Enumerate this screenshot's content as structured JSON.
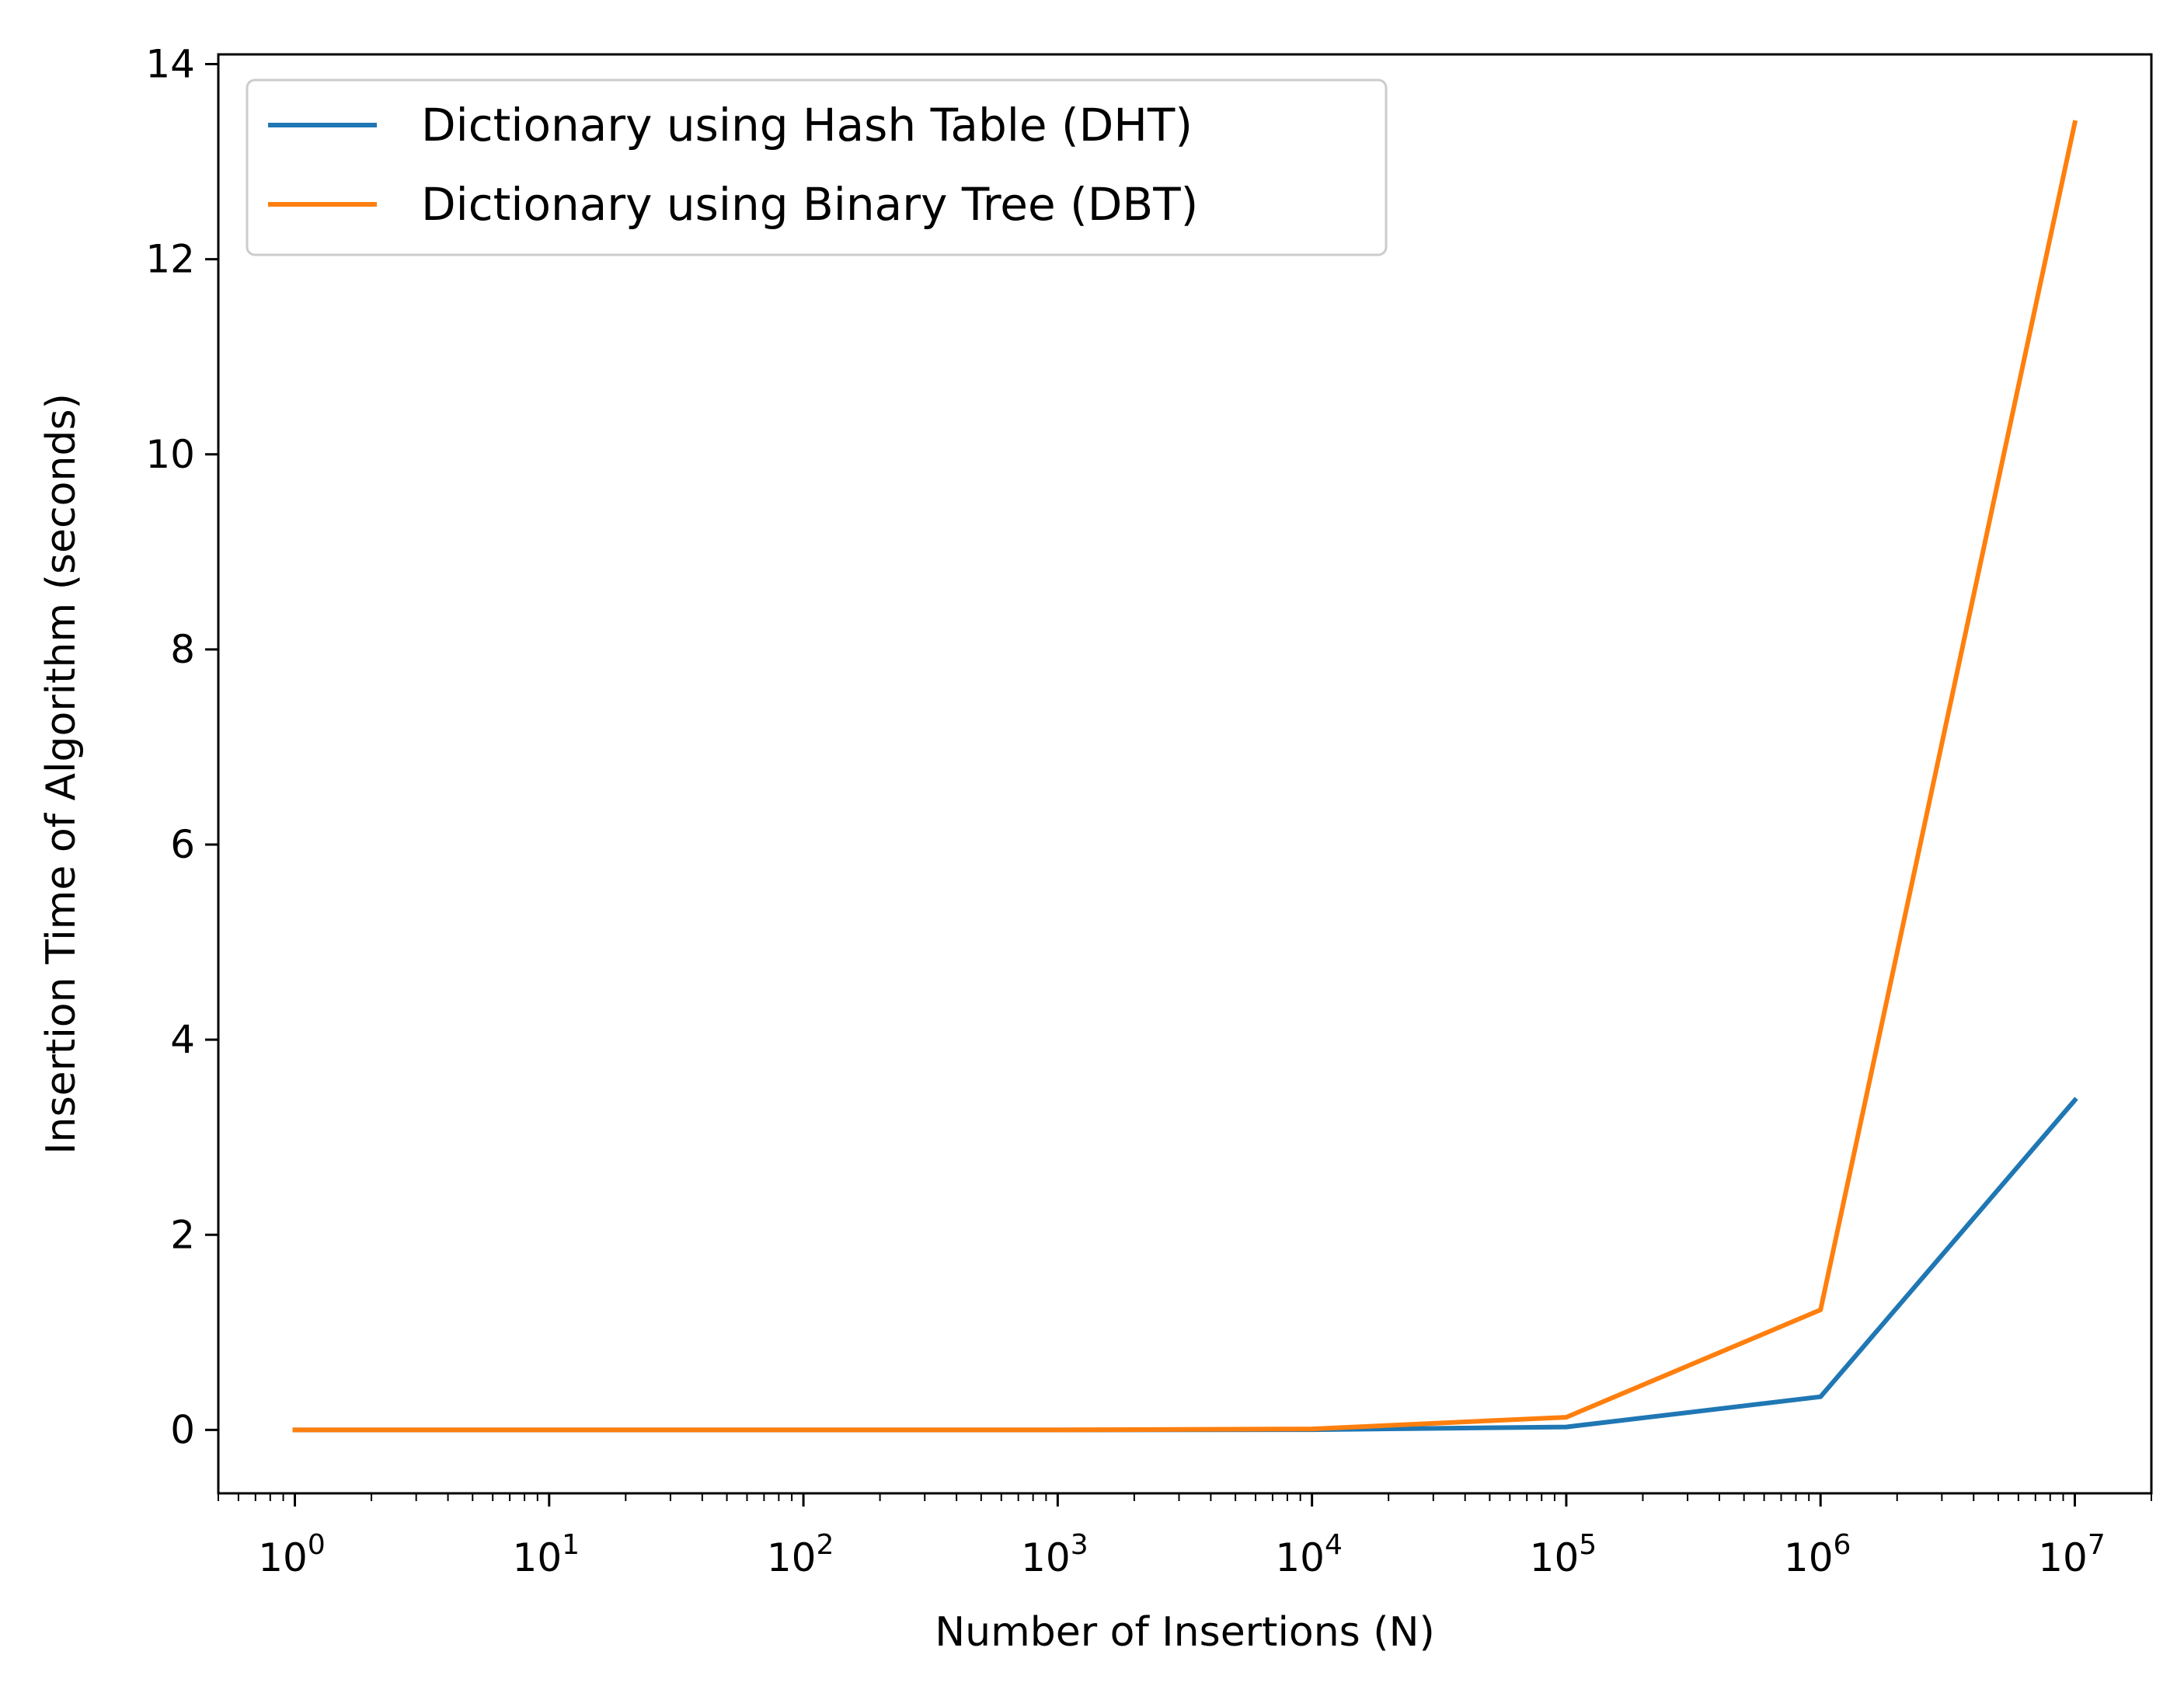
{
  "chart_data": {
    "type": "line",
    "xlabel": "Number of Insertions (N)",
    "ylabel": "Insertion Time of Algorithm (seconds)",
    "xscale": "log",
    "xlim": [
      0.5,
      20000000
    ],
    "ylim": [
      -0.65,
      14.1
    ],
    "xticks": [
      {
        "base": "10",
        "exp": "0",
        "value": 1
      },
      {
        "base": "10",
        "exp": "1",
        "value": 10
      },
      {
        "base": "10",
        "exp": "2",
        "value": 100
      },
      {
        "base": "10",
        "exp": "3",
        "value": 1000
      },
      {
        "base": "10",
        "exp": "4",
        "value": 10000
      },
      {
        "base": "10",
        "exp": "5",
        "value": 100000
      },
      {
        "base": "10",
        "exp": "6",
        "value": 1000000
      },
      {
        "base": "10",
        "exp": "7",
        "value": 10000000
      }
    ],
    "yticks": [
      {
        "label": "0",
        "value": 0
      },
      {
        "label": "2",
        "value": 2
      },
      {
        "label": "4",
        "value": 4
      },
      {
        "label": "6",
        "value": 6
      },
      {
        "label": "8",
        "value": 8
      },
      {
        "label": "10",
        "value": 10
      },
      {
        "label": "12",
        "value": 12
      },
      {
        "label": "14",
        "value": 14
      }
    ],
    "x": [
      1,
      10,
      100,
      1000,
      10000,
      100000,
      1000000,
      10000000
    ],
    "series": [
      {
        "name": "Dictionary using Hash Table (DHT)",
        "color": "#1f77b4",
        "values": [
          0.0,
          0.0,
          0.0,
          0.0,
          0.002,
          0.03,
          0.34,
          3.38
        ]
      },
      {
        "name": "Dictionary using Binary Tree (DBT)",
        "color": "#ff7f0e",
        "values": [
          0.0,
          0.0,
          0.0,
          0.0,
          0.01,
          0.13,
          1.23,
          13.4
        ]
      }
    ],
    "legend_position": "top-left",
    "grid": false
  }
}
